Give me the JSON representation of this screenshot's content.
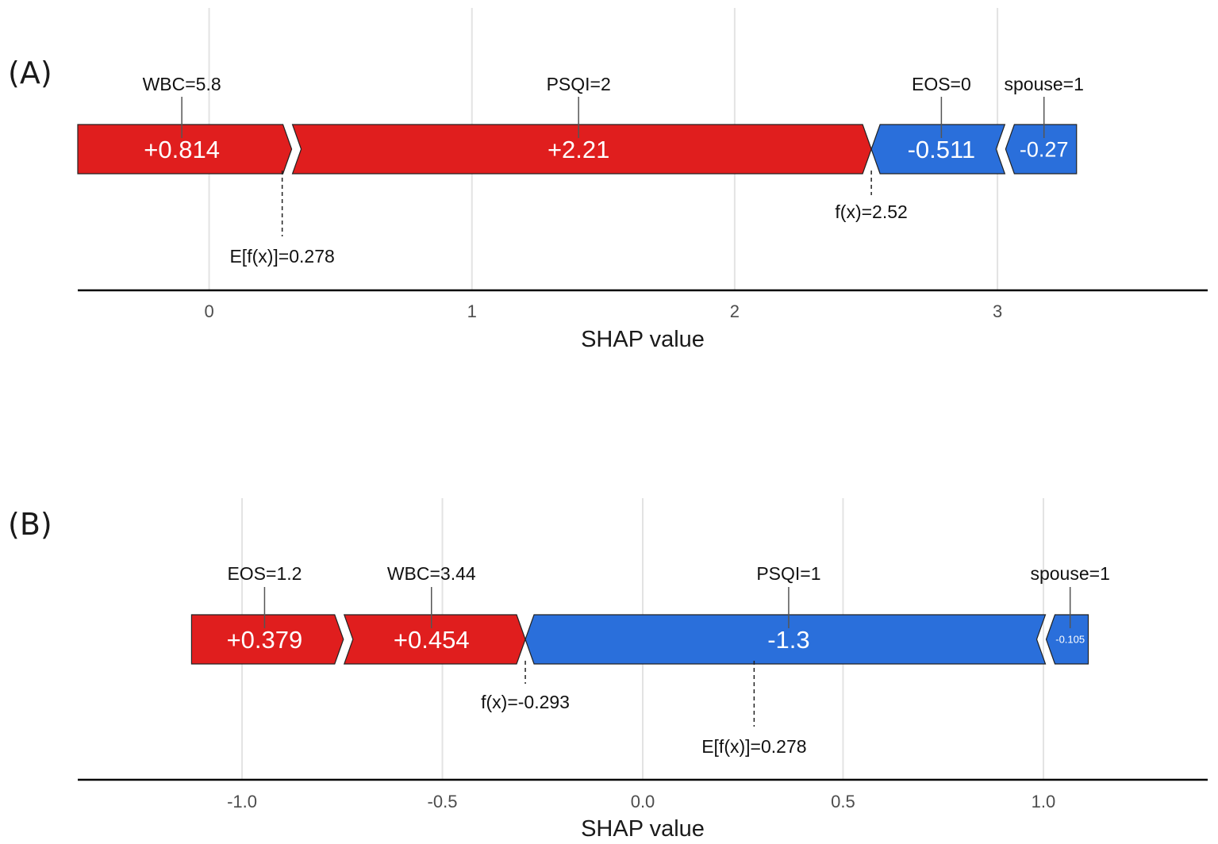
{
  "colors": {
    "positive": "#e01e1e",
    "negative": "#2a6fdb"
  },
  "chart_data": [
    {
      "type": "shap-force",
      "panel_label": "(A)",
      "xlabel": "SHAP value",
      "xlim": [
        -0.5,
        3.8
      ],
      "ticks": [
        0,
        1,
        2,
        3
      ],
      "tick_labels": [
        "0",
        "1",
        "2",
        "3"
      ],
      "base_value": 0.278,
      "base_label": "E[f(x)]=0.278",
      "fx_value": 2.52,
      "fx_label": "f(x)=2.52",
      "segments": [
        {
          "feature": "WBC=5.8",
          "value_label": "+0.814",
          "start": -0.5,
          "end": 0.314,
          "sign": "positive"
        },
        {
          "feature": "PSQI=2",
          "value_label": "+2.21",
          "start": 0.314,
          "end": 2.52,
          "sign": "positive"
        },
        {
          "feature": "EOS=0",
          "value_label": "-0.511",
          "start": 2.52,
          "end": 3.031,
          "sign": "negative"
        },
        {
          "feature": "spouse=1",
          "value_label": "-0.27",
          "start": 3.031,
          "end": 3.301,
          "sign": "negative"
        }
      ]
    },
    {
      "type": "shap-force",
      "panel_label": "(B)",
      "xlabel": "SHAP value",
      "xlim": [
        -1.41,
        1.41
      ],
      "ticks": [
        -1.0,
        -0.5,
        0.0,
        0.5,
        1.0
      ],
      "tick_labels": [
        "-1.0",
        "-0.5",
        "0.0",
        "0.5",
        "1.0"
      ],
      "base_value": 0.278,
      "base_label": "E[f(x)]=0.278",
      "fx_value": -0.293,
      "fx_label": "f(x)=-0.293",
      "segments": [
        {
          "feature": "EOS=1.2",
          "value_label": "+0.379",
          "start": -1.126,
          "end": -0.747,
          "sign": "positive"
        },
        {
          "feature": "WBC=3.44",
          "value_label": "+0.454",
          "start": -0.747,
          "end": -0.293,
          "sign": "positive"
        },
        {
          "feature": "PSQI=1",
          "value_label": "-1.3",
          "start": -0.293,
          "end": 1.007,
          "sign": "negative"
        },
        {
          "feature": "spouse=1",
          "value_label": "-0.105",
          "start": 1.007,
          "end": 1.112,
          "sign": "negative"
        }
      ]
    }
  ]
}
